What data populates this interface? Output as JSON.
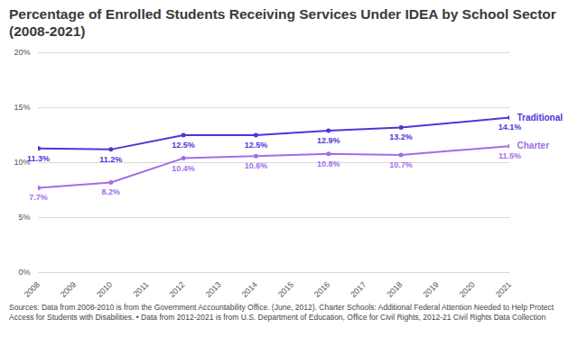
{
  "chart_data": {
    "type": "line",
    "title": "Percentage of Enrolled Students Receiving Services Under IDEA by School Sector (2008-2021)",
    "caption": "Sources: Data from 2008-2010 is from the Government Accountability Office. (June, 2012). Charter Schools: Additional Federal Attention Needed to Help Protect Access for Students with Disabilities. • Data from 2012-2021 is from U.S. Department of Education, Office for Civil Rights, 2012-21 Civil Rights Data Collection",
    "x": [
      2008,
      2010,
      2012,
      2014,
      2016,
      2018,
      2021
    ],
    "xlim": [
      2008,
      2021
    ],
    "xticks": [
      2008,
      2009,
      2010,
      2011,
      2012,
      2013,
      2014,
      2015,
      2016,
      2017,
      2018,
      2019,
      2020,
      2021
    ],
    "ylim": [
      0,
      20
    ],
    "yticks": [
      {
        "value": 0,
        "label": "0%"
      },
      {
        "value": 5,
        "label": "5%"
      },
      {
        "value": 10,
        "label": "10%"
      },
      {
        "value": 15,
        "label": "15%"
      },
      {
        "value": 20,
        "label": "20%"
      }
    ],
    "grid": true,
    "data_labels": true,
    "marker": "circle",
    "series": [
      {
        "name": "Traditional",
        "color": "#4f35d8",
        "values": [
          11.3,
          11.2,
          12.5,
          12.5,
          12.9,
          13.2,
          14.1
        ],
        "value_labels": [
          "11.3%",
          "11.2%",
          "12.5%",
          "12.5%",
          "12.9%",
          "13.2%",
          "14.1%"
        ]
      },
      {
        "name": "Charter",
        "color": "#a56ce8",
        "values": [
          7.7,
          8.2,
          10.4,
          10.6,
          10.8,
          10.7,
          11.5
        ],
        "value_labels": [
          "7.7%",
          "8.2%",
          "10.4%",
          "10.6%",
          "10.8%",
          "10.7%",
          "11.5%"
        ]
      }
    ]
  }
}
